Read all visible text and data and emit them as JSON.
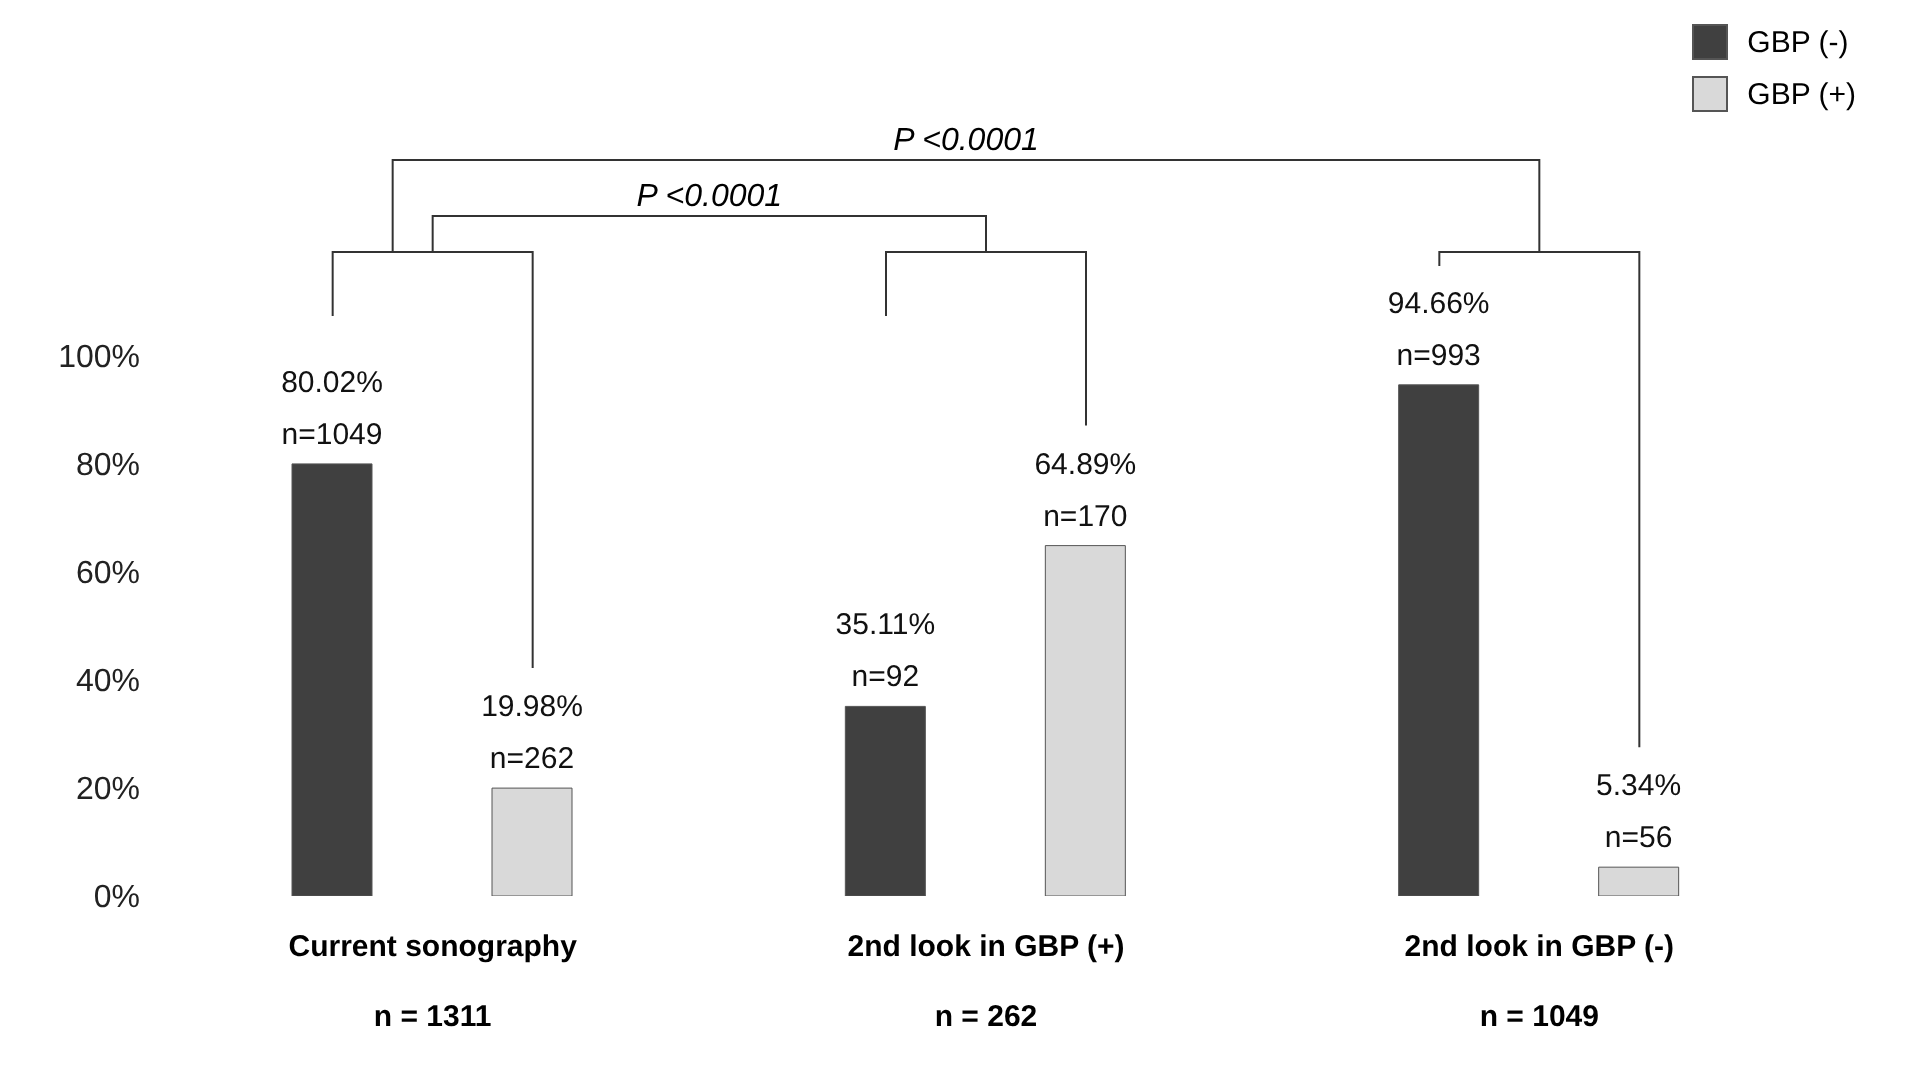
{
  "chart_data": {
    "type": "bar",
    "categories": [
      "Current sonography\nn = 1311",
      "2nd look in GBP (+)\nn = 262",
      "2nd look in GBP (-)\nn = 1049"
    ],
    "series": [
      {
        "name": "GBP (-)",
        "color": "#404040",
        "values": [
          80.02,
          35.11,
          94.66
        ],
        "value_labels": [
          "80.02%\nn=1049",
          "35.11%\nn=92",
          "94.66%\nn=993"
        ]
      },
      {
        "name": "GBP (+)",
        "color": "#d9d9d9",
        "values": [
          19.98,
          64.89,
          5.34
        ],
        "value_labels": [
          "19.98%\nn=262",
          "64.89%\nn=170",
          "5.34%\nn=56"
        ]
      }
    ],
    "ylim": [
      0,
      100
    ],
    "yticks": [
      {
        "value": 0,
        "label": "0%"
      },
      {
        "value": 20,
        "label": "20%"
      },
      {
        "value": 40,
        "label": "40%"
      },
      {
        "value": 60,
        "label": "60%"
      },
      {
        "value": 80,
        "label": "80%"
      },
      {
        "value": 100,
        "label": "100%"
      }
    ],
    "annotations": [
      "P <0.0001",
      "P <0.0001"
    ],
    "legend": "top right",
    "grid": false
  }
}
